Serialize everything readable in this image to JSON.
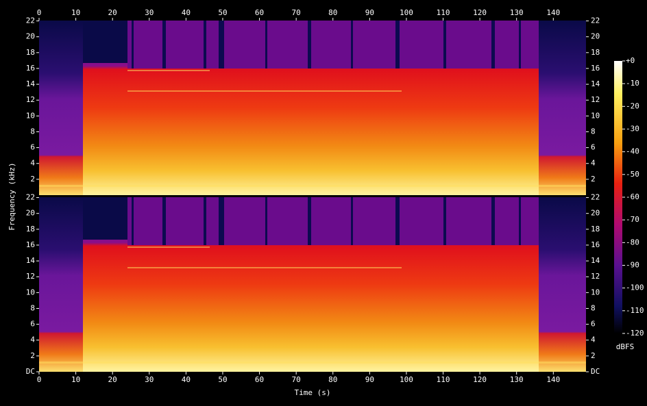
{
  "chart_data": [
    {
      "type": "spectrogram",
      "ylabel": "Frequency (kHz)",
      "xlim": [
        0,
        148.9
      ],
      "xticks": [
        0,
        10,
        20,
        30,
        40,
        50,
        60,
        70,
        80,
        90,
        100,
        110,
        120,
        130,
        140
      ],
      "ylim": [
        0,
        22.05
      ],
      "yticks": [
        2,
        4,
        6,
        8,
        10,
        12,
        14,
        16,
        18,
        20,
        22
      ]
    },
    {
      "type": "spectrogram",
      "xlabel": "Time (s)",
      "xlim": [
        0,
        148.9
      ],
      "xticks": [
        0,
        10,
        20,
        30,
        40,
        50,
        60,
        70,
        80,
        90,
        100,
        110,
        120,
        130,
        140
      ],
      "ylim": [
        0,
        22.05
      ],
      "yticks": [
        {
          "value": 0,
          "label": "DC"
        },
        2,
        4,
        6,
        8,
        10,
        12,
        14,
        16,
        18,
        20,
        22
      ],
      "colorbar": {
        "label": "dBFS",
        "lim": [
          -120,
          0
        ],
        "ticks": [
          {
            "value": 0,
            "label": "+0"
          },
          -10,
          -20,
          -30,
          -40,
          -50,
          -60,
          -70,
          -80,
          -90,
          -100,
          -110,
          -120
        ]
      }
    }
  ]
}
